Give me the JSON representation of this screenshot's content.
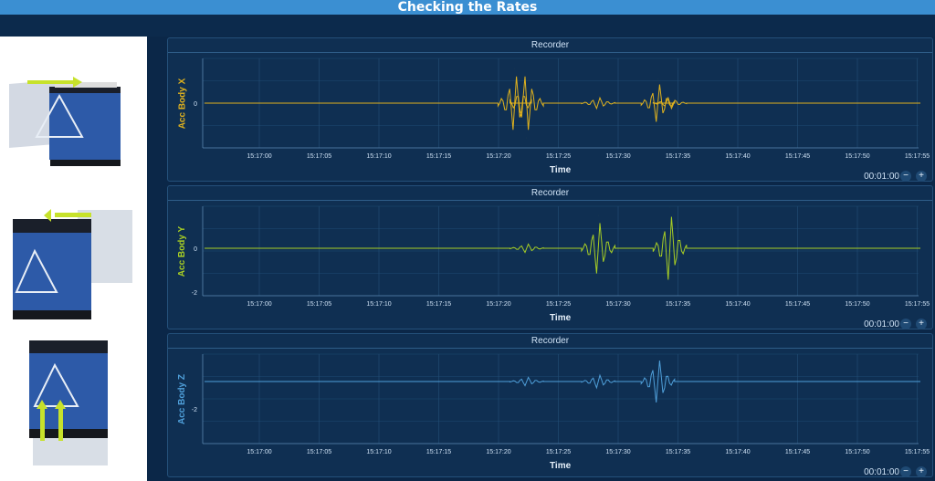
{
  "header": {
    "title": "Checking the Rates"
  },
  "panels": [
    {
      "title": "Recorder",
      "ylabel": "Acc Body X",
      "color": "#e0b21e",
      "yticks": [
        "0"
      ],
      "xlabel": "Time",
      "readout": "00:01:00"
    },
    {
      "title": "Recorder",
      "ylabel": "Acc Body Y",
      "color": "#a8cf24",
      "yticks": [
        "0",
        "-2"
      ],
      "xlabel": "Time",
      "readout": "00:01:00"
    },
    {
      "title": "Recorder",
      "ylabel": "Acc Body Z",
      "color": "#4f9fd9",
      "yticks": [
        "-2"
      ],
      "xlabel": "Time",
      "readout": "00:01:00"
    }
  ],
  "xticks": [
    "15:17:00",
    "15:17:05",
    "15:17:10",
    "15:17:15",
    "15:17:20",
    "15:17:25",
    "15:17:30",
    "15:17:35",
    "15:17:40",
    "15:17:45",
    "15:17:50",
    "15:17:55"
  ],
  "buttons": {
    "zoom_out": "−",
    "zoom_in": "+"
  },
  "left_images": [
    "battery-slide-x-image",
    "battery-slide-y-image",
    "battery-lift-z-image"
  ],
  "chart_data": [
    {
      "type": "line",
      "ylabel": "Acc Body X",
      "x": [
        "15:17:21",
        "15:17:22",
        "15:17:28",
        "15:17:33",
        "15:17:34"
      ],
      "series": [
        {
          "name": "",
          "values": [
            1.0,
            -1.0,
            0.2,
            0.7,
            -0.2
          ]
        }
      ]
    },
    {
      "type": "line",
      "ylabel": "Acc Body Y",
      "x": [
        "15:17:22",
        "15:17:28",
        "15:17:34"
      ],
      "series": [
        {
          "name": "",
          "values": [
            0.2,
            1.2,
            1.5
          ]
        }
      ]
    },
    {
      "type": "line",
      "ylabel": "Acc Body Z",
      "x": [
        "15:17:22",
        "15:17:28",
        "15:17:33"
      ],
      "series": [
        {
          "name": "",
          "values": [
            0.2,
            0.3,
            1.0
          ]
        }
      ]
    }
  ]
}
